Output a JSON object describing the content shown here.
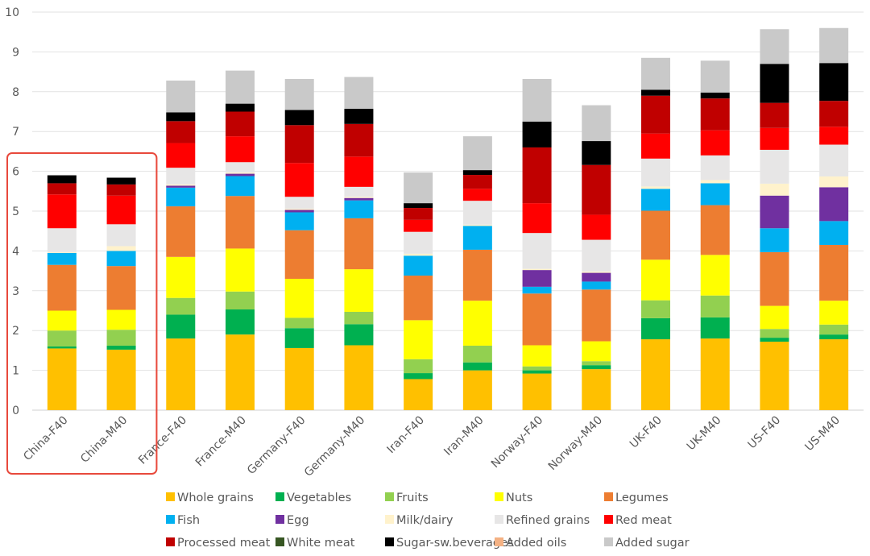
{
  "chart_data": {
    "type": "bar",
    "stacked": true,
    "title": "",
    "xlabel": "",
    "ylabel": "",
    "ylim": [
      0,
      10
    ],
    "yticks": [
      0,
      1,
      2,
      3,
      4,
      5,
      6,
      7,
      8,
      9,
      10
    ],
    "grid": true,
    "legend_position": "bottom",
    "highlight": {
      "categories": [
        "China-F40",
        "China-M40"
      ],
      "color": "#e8493c"
    },
    "categories": [
      "China-F40",
      "China-M40",
      "France-F40",
      "France-M40",
      "Germany-F40",
      "Germany-M40",
      "Iran-F40",
      "Iran-M40",
      "Norway-F40",
      "Norway-M40",
      "UK-F40",
      "UK-M40",
      "US-F40",
      "US-M40"
    ],
    "series": [
      {
        "name": "Whole grains",
        "color": "#ffc000",
        "values": [
          1.55,
          1.52,
          1.8,
          1.9,
          1.56,
          1.63,
          0.78,
          1.0,
          0.92,
          1.03,
          1.78,
          1.8,
          1.72,
          1.78
        ]
      },
      {
        "name": "Vegetables",
        "color": "#00b050",
        "values": [
          0.05,
          0.1,
          0.6,
          0.63,
          0.5,
          0.53,
          0.15,
          0.2,
          0.08,
          0.1,
          0.53,
          0.53,
          0.1,
          0.12
        ]
      },
      {
        "name": "Fruits",
        "color": "#92d050",
        "values": [
          0.4,
          0.4,
          0.42,
          0.45,
          0.26,
          0.31,
          0.35,
          0.42,
          0.1,
          0.1,
          0.45,
          0.55,
          0.22,
          0.25
        ]
      },
      {
        "name": "Nuts",
        "color": "#ffff00",
        "values": [
          0.5,
          0.5,
          1.03,
          1.08,
          0.98,
          1.07,
          0.98,
          1.13,
          0.53,
          0.5,
          1.02,
          1.02,
          0.58,
          0.6
        ]
      },
      {
        "name": "Legumes",
        "color": "#ed7d31",
        "values": [
          1.15,
          1.1,
          1.27,
          1.32,
          1.22,
          1.28,
          1.12,
          1.28,
          1.3,
          1.3,
          1.23,
          1.25,
          1.35,
          1.4
        ]
      },
      {
        "name": "Fish",
        "color": "#00b0f0",
        "values": [
          0.3,
          0.38,
          0.47,
          0.5,
          0.45,
          0.45,
          0.5,
          0.6,
          0.17,
          0.2,
          0.55,
          0.55,
          0.6,
          0.6
        ]
      },
      {
        "name": "Egg",
        "color": "#7030a0",
        "values": [
          0.0,
          0.0,
          0.05,
          0.06,
          0.06,
          0.06,
          0.0,
          0.0,
          0.42,
          0.22,
          0.0,
          0.0,
          0.82,
          0.85
        ]
      },
      {
        "name": "Milk/dairy",
        "color": "#fff2cc",
        "values": [
          0.02,
          0.12,
          0.03,
          0.03,
          0.03,
          0.03,
          0.05,
          0.03,
          0.03,
          0.03,
          0.06,
          0.08,
          0.3,
          0.27
        ]
      },
      {
        "name": "Refined grains",
        "color": "#e7e6e6",
        "values": [
          0.6,
          0.55,
          0.42,
          0.26,
          0.3,
          0.25,
          0.55,
          0.6,
          0.9,
          0.8,
          0.7,
          0.62,
          0.85,
          0.8
        ]
      },
      {
        "name": "Red meat",
        "color": "#ff0000",
        "values": [
          0.85,
          0.72,
          0.62,
          0.65,
          0.85,
          0.76,
          0.3,
          0.3,
          0.75,
          0.63,
          0.63,
          0.63,
          0.55,
          0.45
        ]
      },
      {
        "name": "Processed meat",
        "color": "#c00000",
        "values": [
          0.28,
          0.28,
          0.55,
          0.62,
          0.95,
          0.82,
          0.3,
          0.35,
          1.4,
          1.25,
          0.95,
          0.8,
          0.63,
          0.65
        ]
      },
      {
        "name": "White meat",
        "color": "#375623",
        "values": [
          0.0,
          0.0,
          0.0,
          0.0,
          0.0,
          0.0,
          0.0,
          0.0,
          0.0,
          0.0,
          0.0,
          0.0,
          0.0,
          0.0
        ]
      },
      {
        "name": "Sugar-sw.beverages",
        "color": "#000000",
        "values": [
          0.2,
          0.17,
          0.22,
          0.2,
          0.38,
          0.38,
          0.12,
          0.12,
          0.65,
          0.6,
          0.15,
          0.15,
          0.98,
          0.95
        ]
      },
      {
        "name": "Added oils",
        "color": "#f4b183",
        "values": [
          0.0,
          0.0,
          0.0,
          0.0,
          0.0,
          0.0,
          0.0,
          0.0,
          0.0,
          0.0,
          0.0,
          0.0,
          0.0,
          0.0
        ]
      },
      {
        "name": "Added sugar",
        "color": "#c9c9c9",
        "values": [
          0.0,
          0.0,
          0.8,
          0.83,
          0.78,
          0.8,
          0.77,
          0.85,
          1.07,
          0.9,
          0.8,
          0.8,
          0.87,
          0.88
        ]
      }
    ]
  }
}
